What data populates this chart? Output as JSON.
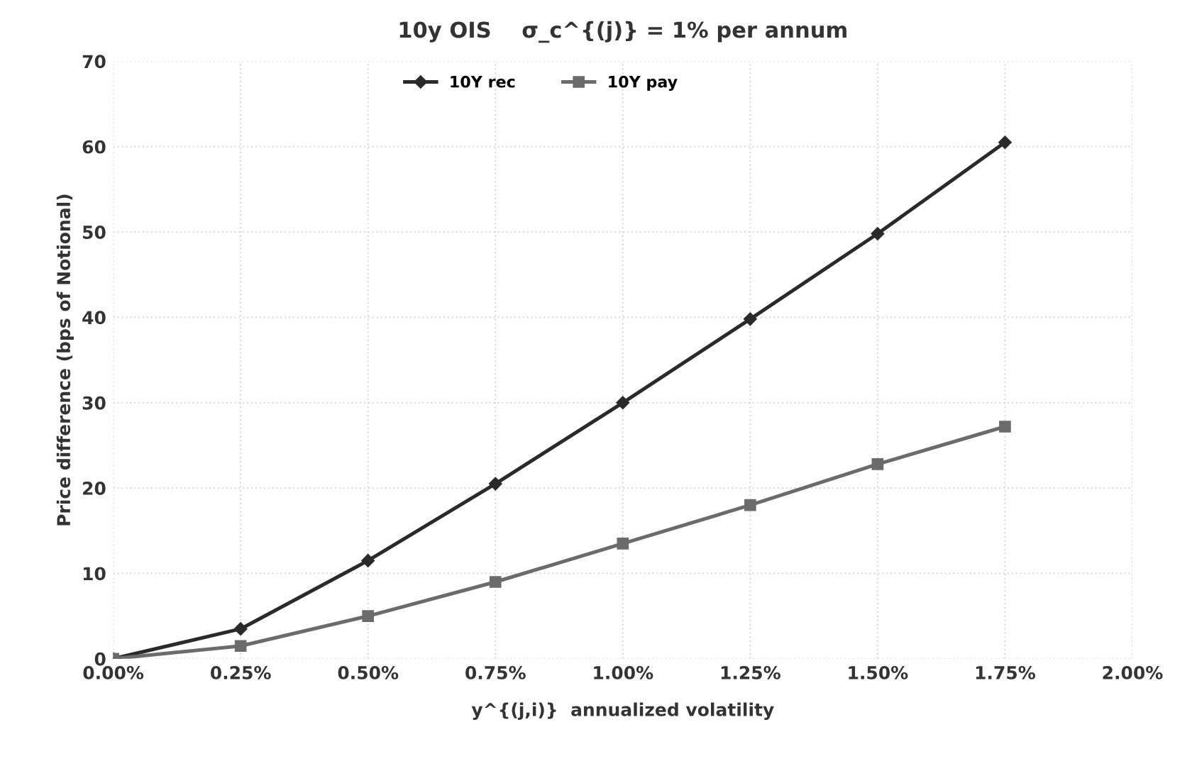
{
  "chart_data": {
    "type": "line",
    "title": "10y OIS    σ_c^{(j)} = 1% per annum",
    "xlabel": "y^{(j,i)}  annualized volatility",
    "ylabel": "Price difference (bps of Notional)",
    "x": [
      0,
      0.25,
      0.5,
      0.75,
      1.0,
      1.25,
      1.5,
      1.75
    ],
    "series": [
      {
        "name": "10Y rec",
        "color": "#2a2a2a",
        "marker": "diamond",
        "values": [
          0,
          3.5,
          11.5,
          20.5,
          30,
          39.8,
          49.8,
          60.5
        ]
      },
      {
        "name": "10Y pay",
        "color": "#6b6b6b",
        "marker": "square",
        "values": [
          0,
          1.5,
          5,
          9,
          13.5,
          18,
          22.8,
          27.2
        ]
      }
    ],
    "xlim": [
      0,
      2.0
    ],
    "xticks": [
      {
        "value": 0,
        "label": "0.00%"
      },
      {
        "value": 0.25,
        "label": "0.25%"
      },
      {
        "value": 0.5,
        "label": "0.50%"
      },
      {
        "value": 0.75,
        "label": "0.75%"
      },
      {
        "value": 1.0,
        "label": "1.00%"
      },
      {
        "value": 1.25,
        "label": "1.25%"
      },
      {
        "value": 1.5,
        "label": "1.50%"
      },
      {
        "value": 1.75,
        "label": "1.75%"
      },
      {
        "value": 2.0,
        "label": "2.00%"
      }
    ],
    "ylim": [
      0,
      70
    ],
    "yticks": [
      0,
      10,
      20,
      30,
      40,
      50,
      60,
      70
    ],
    "grid": true,
    "legend": "top",
    "line_style": "solid"
  }
}
